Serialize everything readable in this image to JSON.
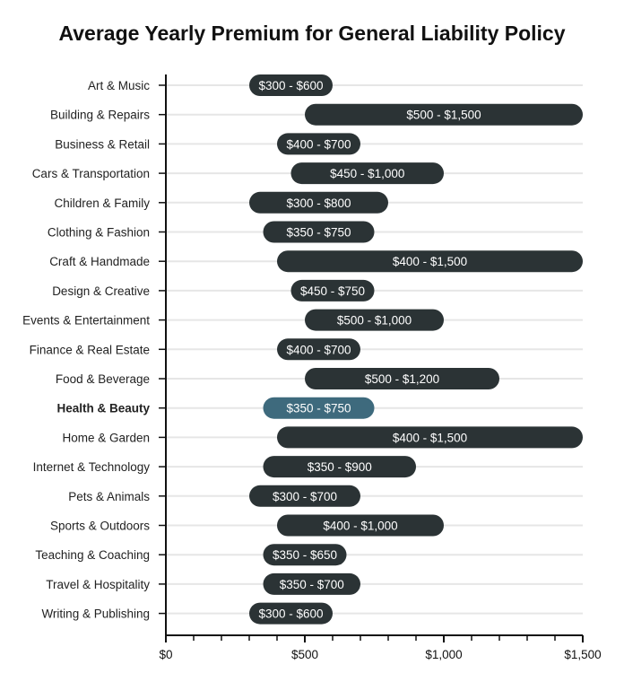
{
  "chart_data": {
    "type": "bar",
    "orientation": "horizontal-range",
    "title": "Average Yearly Premium for General Liability Policy",
    "xlabel": "",
    "ylabel": "",
    "xlim": [
      0,
      1500
    ],
    "x_ticks": [
      0,
      500,
      1000,
      1500
    ],
    "x_tick_labels": [
      "$0",
      "$500",
      "$1,000",
      "$1,500"
    ],
    "minor_tick_step": 100,
    "grid": true,
    "colors": {
      "bar": "#2b3335",
      "highlight": "#3e6a7d",
      "grid": "#e6e6e6",
      "axis": "#111111"
    },
    "highlight_category": "Health & Beauty",
    "categories": [
      "Art & Music",
      "Building & Repairs",
      "Business & Retail",
      "Cars & Transportation",
      "Children & Family",
      "Clothing & Fashion",
      "Craft & Handmade",
      "Design & Creative",
      "Events & Entertainment",
      "Finance & Real Estate",
      "Food & Beverage",
      "Health & Beauty",
      "Home & Garden",
      "Internet & Technology",
      "Pets & Animals",
      "Sports & Outdoors",
      "Teaching & Coaching",
      "Travel & Hospitality",
      "Writing & Publishing"
    ],
    "ranges": [
      [
        300,
        600
      ],
      [
        500,
        1500
      ],
      [
        400,
        700
      ],
      [
        450,
        1000
      ],
      [
        300,
        800
      ],
      [
        350,
        750
      ],
      [
        400,
        1500
      ],
      [
        450,
        750
      ],
      [
        500,
        1000
      ],
      [
        400,
        700
      ],
      [
        500,
        1200
      ],
      [
        350,
        750
      ],
      [
        400,
        1500
      ],
      [
        350,
        900
      ],
      [
        300,
        700
      ],
      [
        400,
        1000
      ],
      [
        350,
        650
      ],
      [
        350,
        700
      ],
      [
        300,
        600
      ]
    ],
    "labels": [
      "$300 - $600",
      "$500 - $1,500",
      "$400 - $700",
      "$450 - $1,000",
      "$300 - $800",
      "$350 - $750",
      "$400 - $1,500",
      "$450 - $750",
      "$500 - $1,000",
      "$400 - $700",
      "$500 - $1,200",
      "$350 - $750",
      "$400 - $1,500",
      "$350 - $900",
      "$300 - $700",
      "$400 - $1,000",
      "$350 - $650",
      "$350 - $700",
      "$300 - $600"
    ]
  }
}
